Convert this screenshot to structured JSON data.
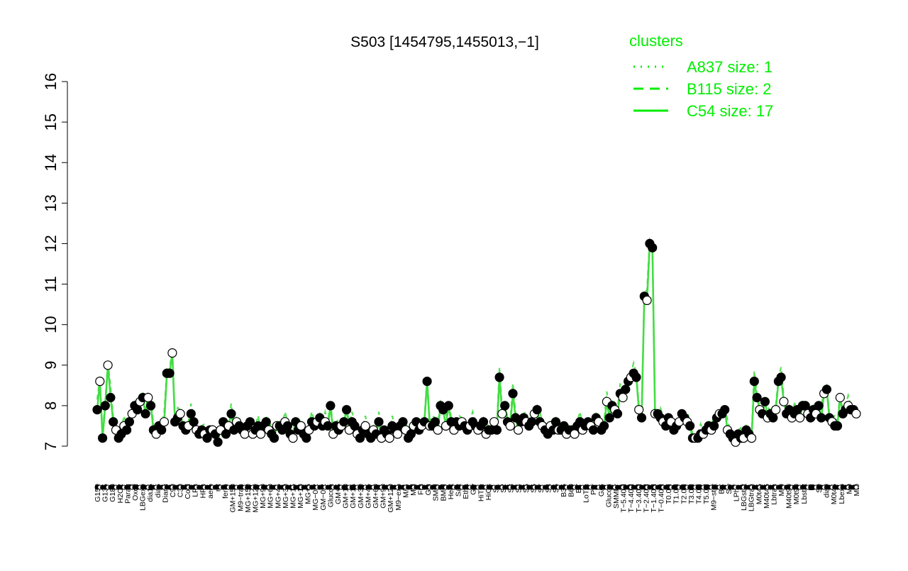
{
  "chart_data": {
    "type": "line",
    "title": "S503 [1454795,1455013,−1]",
    "xlabel": "",
    "ylabel": "",
    "ylim": [
      7,
      16
    ],
    "yticks": [
      7,
      8,
      9,
      10,
      11,
      12,
      13,
      14,
      15,
      16
    ],
    "grid": false,
    "legend": {
      "title": "clusters",
      "placement": "top-right",
      "color": "#00ee00",
      "entries": [
        {
          "label": "A837 size: 1",
          "style": "dotted"
        },
        {
          "label": "B115 size: 2",
          "style": "dashed"
        },
        {
          "label": "C54 size: 17",
          "style": "solid"
        }
      ]
    },
    "colors": {
      "line": "#44dd44",
      "point_edge": "#000000",
      "text": "#000000"
    },
    "x_tick_labels": [
      "G150",
      "G135",
      "G180",
      "H2O2",
      "Paraq",
      "Oxctl",
      "LBGexp",
      "dia15",
      "dia5",
      "Diami",
      "C90",
      "C30",
      "Cold",
      "LPh",
      "HPh",
      "aero",
      "nit",
      "ferm",
      "GM+150",
      "M9−tran",
      "MG+150",
      "MG+120",
      "MG+90",
      "MG+60",
      "MG+45",
      "MG+30",
      "MG+15",
      "MG+10",
      "MG+5",
      "MG−0.2",
      "GM−0.2",
      "Glucon",
      "GM+5",
      "GM+10",
      "GM+15",
      "GM+30",
      "GM+45",
      "GM+60",
      "GM+90",
      "GM+120",
      "M9−exp",
      "M/G",
      "Mal",
      "Fru",
      "Glu",
      "SMM",
      "BMM",
      "Heat",
      "Salt",
      "Etha",
      "Gly",
      "HiTm",
      "HiOs",
      "S1",
      "S2",
      "S3",
      "S4",
      "S5",
      "S6",
      "S7",
      "S8",
      "S6",
      "B36",
      "B60",
      "BT",
      "LoTm",
      "Pyr",
      "G/S",
      "Glucon",
      "SMMPr",
      "T−5.40H",
      "T−4.40H",
      "T−3.40H",
      "T−2.40H",
      "T−1.40H",
      "T−0.40H",
      "T0.0H",
      "T1.0H",
      "T2.0H",
      "T3.0H",
      "T4.0H",
      "T5.0H",
      "M9−stat",
      "BC",
      "Sw",
      "LPhT",
      "LBGstat",
      "LBGtran",
      "M0t45",
      "M40t45",
      "Lbtran",
      "Mt0",
      "M40t90",
      "M0t90",
      "Lbstat",
      "BI",
      "S0",
      "dia0",
      "M0t45",
      "Lbexp",
      "M9",
      "Mt0"
    ],
    "series": [
      {
        "values": [
          7.9,
          8.6,
          7.2,
          8.0,
          9.0,
          8.2,
          7.6,
          7.4,
          7.2,
          7.3,
          7.5,
          7.4,
          7.6,
          7.8,
          8.0,
          7.9,
          8.1,
          8.2,
          7.8,
          8.2,
          8.0,
          7.4,
          7.3,
          7.5,
          7.4,
          7.6,
          8.8,
          8.8,
          9.3,
          7.6,
          7.7,
          7.8,
          7.5,
          7.4,
          7.5,
          7.8,
          7.6,
          7.4,
          7.3,
          7.4,
          7.3,
          7.2,
          7.4,
          7.4,
          7.3,
          7.1,
          7.4,
          7.6,
          7.3,
          7.5,
          7.8,
          7.4,
          7.6,
          7.5,
          7.4,
          7.3,
          7.5,
          7.6,
          7.3,
          7.4,
          7.5,
          7.3,
          7.5,
          7.6,
          7.4,
          7.3,
          7.2,
          7.5,
          7.5,
          7.4,
          7.6,
          7.5,
          7.3,
          7.2,
          7.6,
          7.4,
          7.5,
          7.3,
          7.2,
          7.4,
          7.6,
          7.5,
          7.6,
          7.7,
          7.5,
          7.6,
          7.5,
          8.0,
          7.3,
          7.5,
          7.4,
          7.5,
          7.6,
          7.9,
          7.4,
          7.6,
          7.5,
          7.3,
          7.2,
          7.4,
          7.5,
          7.3,
          7.2,
          7.4,
          7.3,
          7.6,
          7.2,
          7.4,
          7.3,
          7.2,
          7.5,
          7.4,
          7.3,
          7.5,
          7.6,
          7.4,
          7.2,
          7.3,
          7.5,
          7.6,
          7.4,
          7.5,
          7.6,
          8.6,
          7.5,
          7.5,
          7.6,
          7.4,
          8.0,
          7.9,
          7.5,
          8.0,
          7.6,
          7.4,
          7.6,
          7.5,
          7.6,
          7.5,
          7.4,
          7.5,
          7.6,
          7.5,
          7.4,
          7.5,
          7.6,
          7.3,
          7.4,
          7.4,
          7.6,
          7.4,
          8.7,
          7.8,
          8.0,
          7.6,
          7.5,
          8.3,
          7.7,
          7.4,
          7.6,
          7.7,
          7.6,
          7.5,
          7.6,
          7.8,
          7.9,
          7.6,
          7.5,
          7.4,
          7.3,
          7.5,
          7.4,
          7.6,
          7.4,
          7.4,
          7.5,
          7.3,
          7.4,
          7.4,
          7.3,
          7.5,
          7.6,
          7.4,
          7.5,
          7.6,
          7.5,
          7.4,
          7.7,
          7.6,
          7.4,
          7.5,
          8.1,
          7.7,
          8.0,
          7.9,
          7.8,
          8.3,
          8.2,
          8.4,
          8.6,
          8.7,
          8.8,
          8.7,
          7.9,
          7.7,
          10.7,
          10.6,
          12.0,
          11.9,
          7.8,
          7.8,
          7.7,
          7.6,
          7.5,
          7.7,
          7.6,
          7.4,
          7.5,
          7.6,
          7.8,
          7.7,
          7.6,
          7.5,
          7.2,
          7.2,
          7.2,
          7.3,
          7.3,
          7.4,
          7.5,
          7.4,
          7.5,
          7.7,
          7.8,
          7.8,
          7.9,
          7.4,
          7.3,
          7.2,
          7.1,
          7.3,
          7.2,
          7.2,
          7.4,
          7.3,
          7.2,
          8.6,
          8.2,
          7.9,
          7.8,
          8.1,
          7.7,
          7.8,
          7.7,
          7.9,
          8.6,
          8.7,
          8.1,
          7.8,
          7.9,
          7.7,
          7.8,
          7.9,
          7.7,
          8.0,
          8.0,
          7.8,
          7.7,
          7.9,
          7.8,
          8.0,
          7.7,
          8.3,
          8.4,
          7.7,
          7.6,
          7.5,
          7.5,
          8.2,
          7.8,
          7.9,
          8.0,
          7.9,
          7.9,
          7.8
        ]
      }
    ]
  }
}
